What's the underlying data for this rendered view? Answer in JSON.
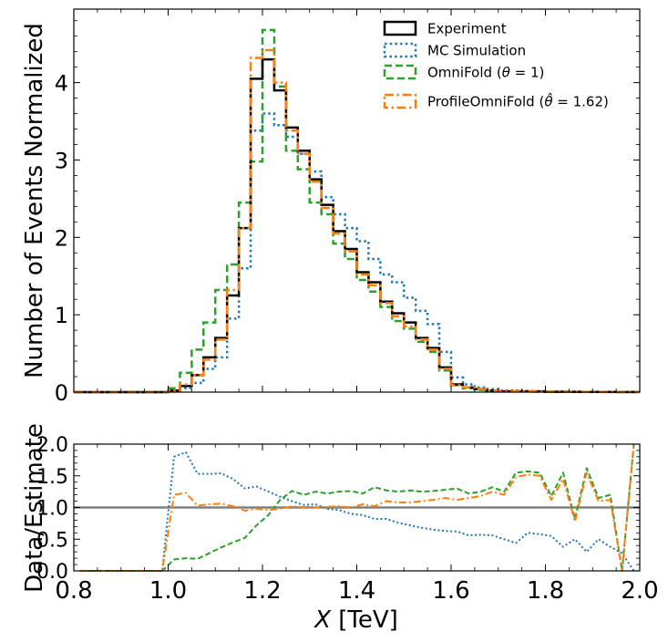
{
  "chart_data": [
    {
      "type": "line",
      "panel": "top",
      "title": "",
      "xlabel": "",
      "ylabel": "Number of Events Normalized",
      "xlim": [
        0.8,
        2.0
      ],
      "ylim": [
        0,
        4.95
      ],
      "yticks": [
        0,
        1,
        2,
        3,
        4
      ],
      "ytick_labels": [
        "0",
        "1",
        "2",
        "3",
        "4"
      ],
      "grid": false,
      "legend_position": "top-right",
      "bin_edges": [
        0.8,
        0.825,
        0.85,
        0.875,
        0.9,
        0.925,
        0.95,
        0.975,
        1.0,
        1.025,
        1.05,
        1.075,
        1.1,
        1.125,
        1.15,
        1.175,
        1.2,
        1.225,
        1.25,
        1.275,
        1.3,
        1.325,
        1.35,
        1.375,
        1.4,
        1.425,
        1.45,
        1.475,
        1.5,
        1.525,
        1.55,
        1.575,
        1.6,
        1.625,
        1.65,
        1.675,
        1.7,
        1.725,
        1.75,
        1.775,
        1.8,
        1.825,
        1.85,
        1.875,
        1.9,
        1.925,
        1.95,
        1.975,
        2.0
      ],
      "series": [
        {
          "name": "Experiment",
          "color": "#000000",
          "linestyle": "solid",
          "values": [
            0,
            0,
            0,
            0,
            0,
            0,
            0,
            0,
            0.02,
            0.08,
            0.22,
            0.45,
            0.7,
            1.25,
            2.12,
            4.05,
            4.3,
            3.9,
            3.42,
            3.12,
            2.75,
            2.42,
            2.08,
            1.85,
            1.55,
            1.42,
            1.17,
            1.02,
            0.9,
            0.7,
            0.57,
            0.32,
            0.1,
            0.06,
            0.04,
            0.02,
            0.01,
            0.01,
            0.01,
            0.01,
            0.005,
            0.005,
            0.005,
            0.003,
            0.003,
            0.003,
            0.001,
            0.001
          ]
        },
        {
          "name": "MC Simulation",
          "color": "#1f77b4",
          "linestyle": "dotted",
          "values": [
            0,
            0,
            0,
            0,
            0,
            0,
            0,
            0,
            0.02,
            0.05,
            0.12,
            0.3,
            0.45,
            0.95,
            1.6,
            3.38,
            3.6,
            3.45,
            3.3,
            3.08,
            2.85,
            2.52,
            2.3,
            2.12,
            1.95,
            1.72,
            1.52,
            1.42,
            1.22,
            1.05,
            0.88,
            0.52,
            0.19,
            0.1,
            0.06,
            0.04,
            0.02,
            0.02,
            0.015,
            0.012,
            0.008,
            0.008,
            0.005,
            0.005,
            0.004,
            0.003,
            0.002,
            0.001
          ]
        },
        {
          "name": "OmniFold ($\\theta=1$)",
          "color": "#2ca02c",
          "linestyle": "dashed",
          "values": [
            0,
            0,
            0,
            0,
            0,
            0,
            0,
            0,
            0.05,
            0.25,
            0.55,
            0.9,
            1.32,
            1.65,
            2.45,
            2.98,
            4.68,
            3.95,
            3.12,
            2.88,
            2.45,
            2.3,
            1.92,
            1.72,
            1.45,
            1.3,
            1.1,
            0.92,
            0.82,
            0.65,
            0.52,
            0.28,
            0.09,
            0.05,
            0.03,
            0.02,
            0.01,
            0.01,
            0.01,
            0.006,
            0.004,
            0.004,
            0.003,
            0.002,
            0.002,
            0.001,
            0.001,
            0.001
          ]
        },
        {
          "name": "ProfileOmniFold ($\\hat{\\theta}=1.62$)",
          "color": "#ff7f0e",
          "linestyle": "dashdot",
          "values": [
            0,
            0,
            0,
            0,
            0,
            0,
            0,
            0,
            0.02,
            0.1,
            0.22,
            0.42,
            0.68,
            1.32,
            2.12,
            4.32,
            4.42,
            4.0,
            3.38,
            3.08,
            2.72,
            2.38,
            2.05,
            1.82,
            1.52,
            1.38,
            1.15,
            0.98,
            0.85,
            0.68,
            0.55,
            0.3,
            0.09,
            0.06,
            0.04,
            0.02,
            0.01,
            0.01,
            0.01,
            0.008,
            0.005,
            0.005,
            0.004,
            0.003,
            0.003,
            0.002,
            0.001,
            0.001
          ]
        }
      ]
    },
    {
      "type": "line",
      "panel": "bottom",
      "title": "",
      "xlabel": "$X$ [TeV]",
      "ylabel": "Data/Estimate",
      "xlim": [
        0.8,
        2.0
      ],
      "ylim": [
        0.0,
        2.0
      ],
      "xticks": [
        0.8,
        1.0,
        1.2,
        1.4,
        1.6,
        1.8,
        2.0
      ],
      "xtick_labels": [
        "0.8",
        "1.0",
        "1.2",
        "1.4",
        "1.6",
        "1.8",
        "2.0"
      ],
      "yticks": [
        0.0,
        0.5,
        1.0,
        1.5,
        2.0
      ],
      "ytick_labels": [
        "0.0",
        "0.5",
        "1.0",
        "1.5",
        "2.0"
      ],
      "grid": false,
      "reference_line": {
        "y": 1.0,
        "color": "#808080"
      },
      "x": [
        0.8125,
        0.8375,
        0.8625,
        0.8875,
        0.9125,
        0.9375,
        0.9625,
        0.9875,
        1.0125,
        1.0375,
        1.0625,
        1.0875,
        1.1125,
        1.1375,
        1.1625,
        1.1875,
        1.2125,
        1.2375,
        1.2625,
        1.2875,
        1.3125,
        1.3375,
        1.3625,
        1.3875,
        1.4125,
        1.4375,
        1.4625,
        1.4875,
        1.5125,
        1.5375,
        1.5625,
        1.5875,
        1.6125,
        1.6375,
        1.6625,
        1.6875,
        1.7125,
        1.7375,
        1.7625,
        1.7875,
        1.8125,
        1.8375,
        1.8625,
        1.8875,
        1.9125,
        1.9375,
        1.9625,
        1.9875
      ],
      "series": [
        {
          "name": "MC Simulation",
          "color": "#1f77b4",
          "linestyle": "dotted",
          "values": [
            0,
            0,
            0,
            0,
            0,
            0,
            0,
            0,
            1.8,
            1.87,
            1.53,
            1.53,
            1.54,
            1.45,
            1.3,
            1.33,
            1.25,
            1.17,
            1.1,
            1.04,
            1.05,
            0.98,
            0.96,
            0.9,
            0.88,
            0.82,
            0.82,
            0.76,
            0.72,
            0.68,
            0.65,
            0.63,
            0.62,
            0.56,
            0.57,
            0.56,
            0.5,
            0.44,
            0.6,
            0.58,
            0.55,
            0.38,
            0.5,
            0.3,
            0.5,
            0.38,
            0.28,
            0.0
          ]
        },
        {
          "name": "OmniFold ($\\theta=1$)",
          "color": "#2ca02c",
          "linestyle": "dashed",
          "values": [
            0,
            0,
            0,
            0,
            0,
            0,
            0,
            0,
            0.18,
            0.2,
            0.19,
            0.28,
            0.37,
            0.45,
            0.52,
            0.72,
            0.88,
            1.12,
            1.26,
            1.2,
            1.25,
            1.22,
            1.25,
            1.26,
            1.22,
            1.32,
            1.27,
            1.25,
            1.27,
            1.25,
            1.26,
            1.28,
            1.3,
            1.22,
            1.25,
            1.32,
            1.25,
            1.55,
            1.57,
            1.55,
            1.18,
            1.55,
            0.82,
            1.62,
            1.15,
            1.2,
            0.0,
            2.0
          ]
        },
        {
          "name": "ProfileOmniFold ($\\hat{\\theta}=1.62$)",
          "color": "#ff7f0e",
          "linestyle": "dashdot",
          "values": [
            0,
            0,
            0,
            0,
            0,
            0,
            0,
            0,
            1.2,
            1.23,
            1.03,
            1.05,
            1.06,
            1.02,
            0.95,
            0.98,
            0.96,
            0.98,
            1.02,
            1.0,
            1.0,
            1.01,
            1.02,
            1.0,
            1.05,
            1.02,
            1.1,
            1.08,
            1.08,
            1.1,
            1.12,
            1.15,
            1.12,
            1.15,
            1.18,
            1.25,
            1.2,
            1.48,
            1.52,
            1.5,
            1.12,
            1.45,
            0.78,
            1.55,
            1.1,
            1.12,
            0.0,
            2.0
          ]
        }
      ]
    }
  ]
}
